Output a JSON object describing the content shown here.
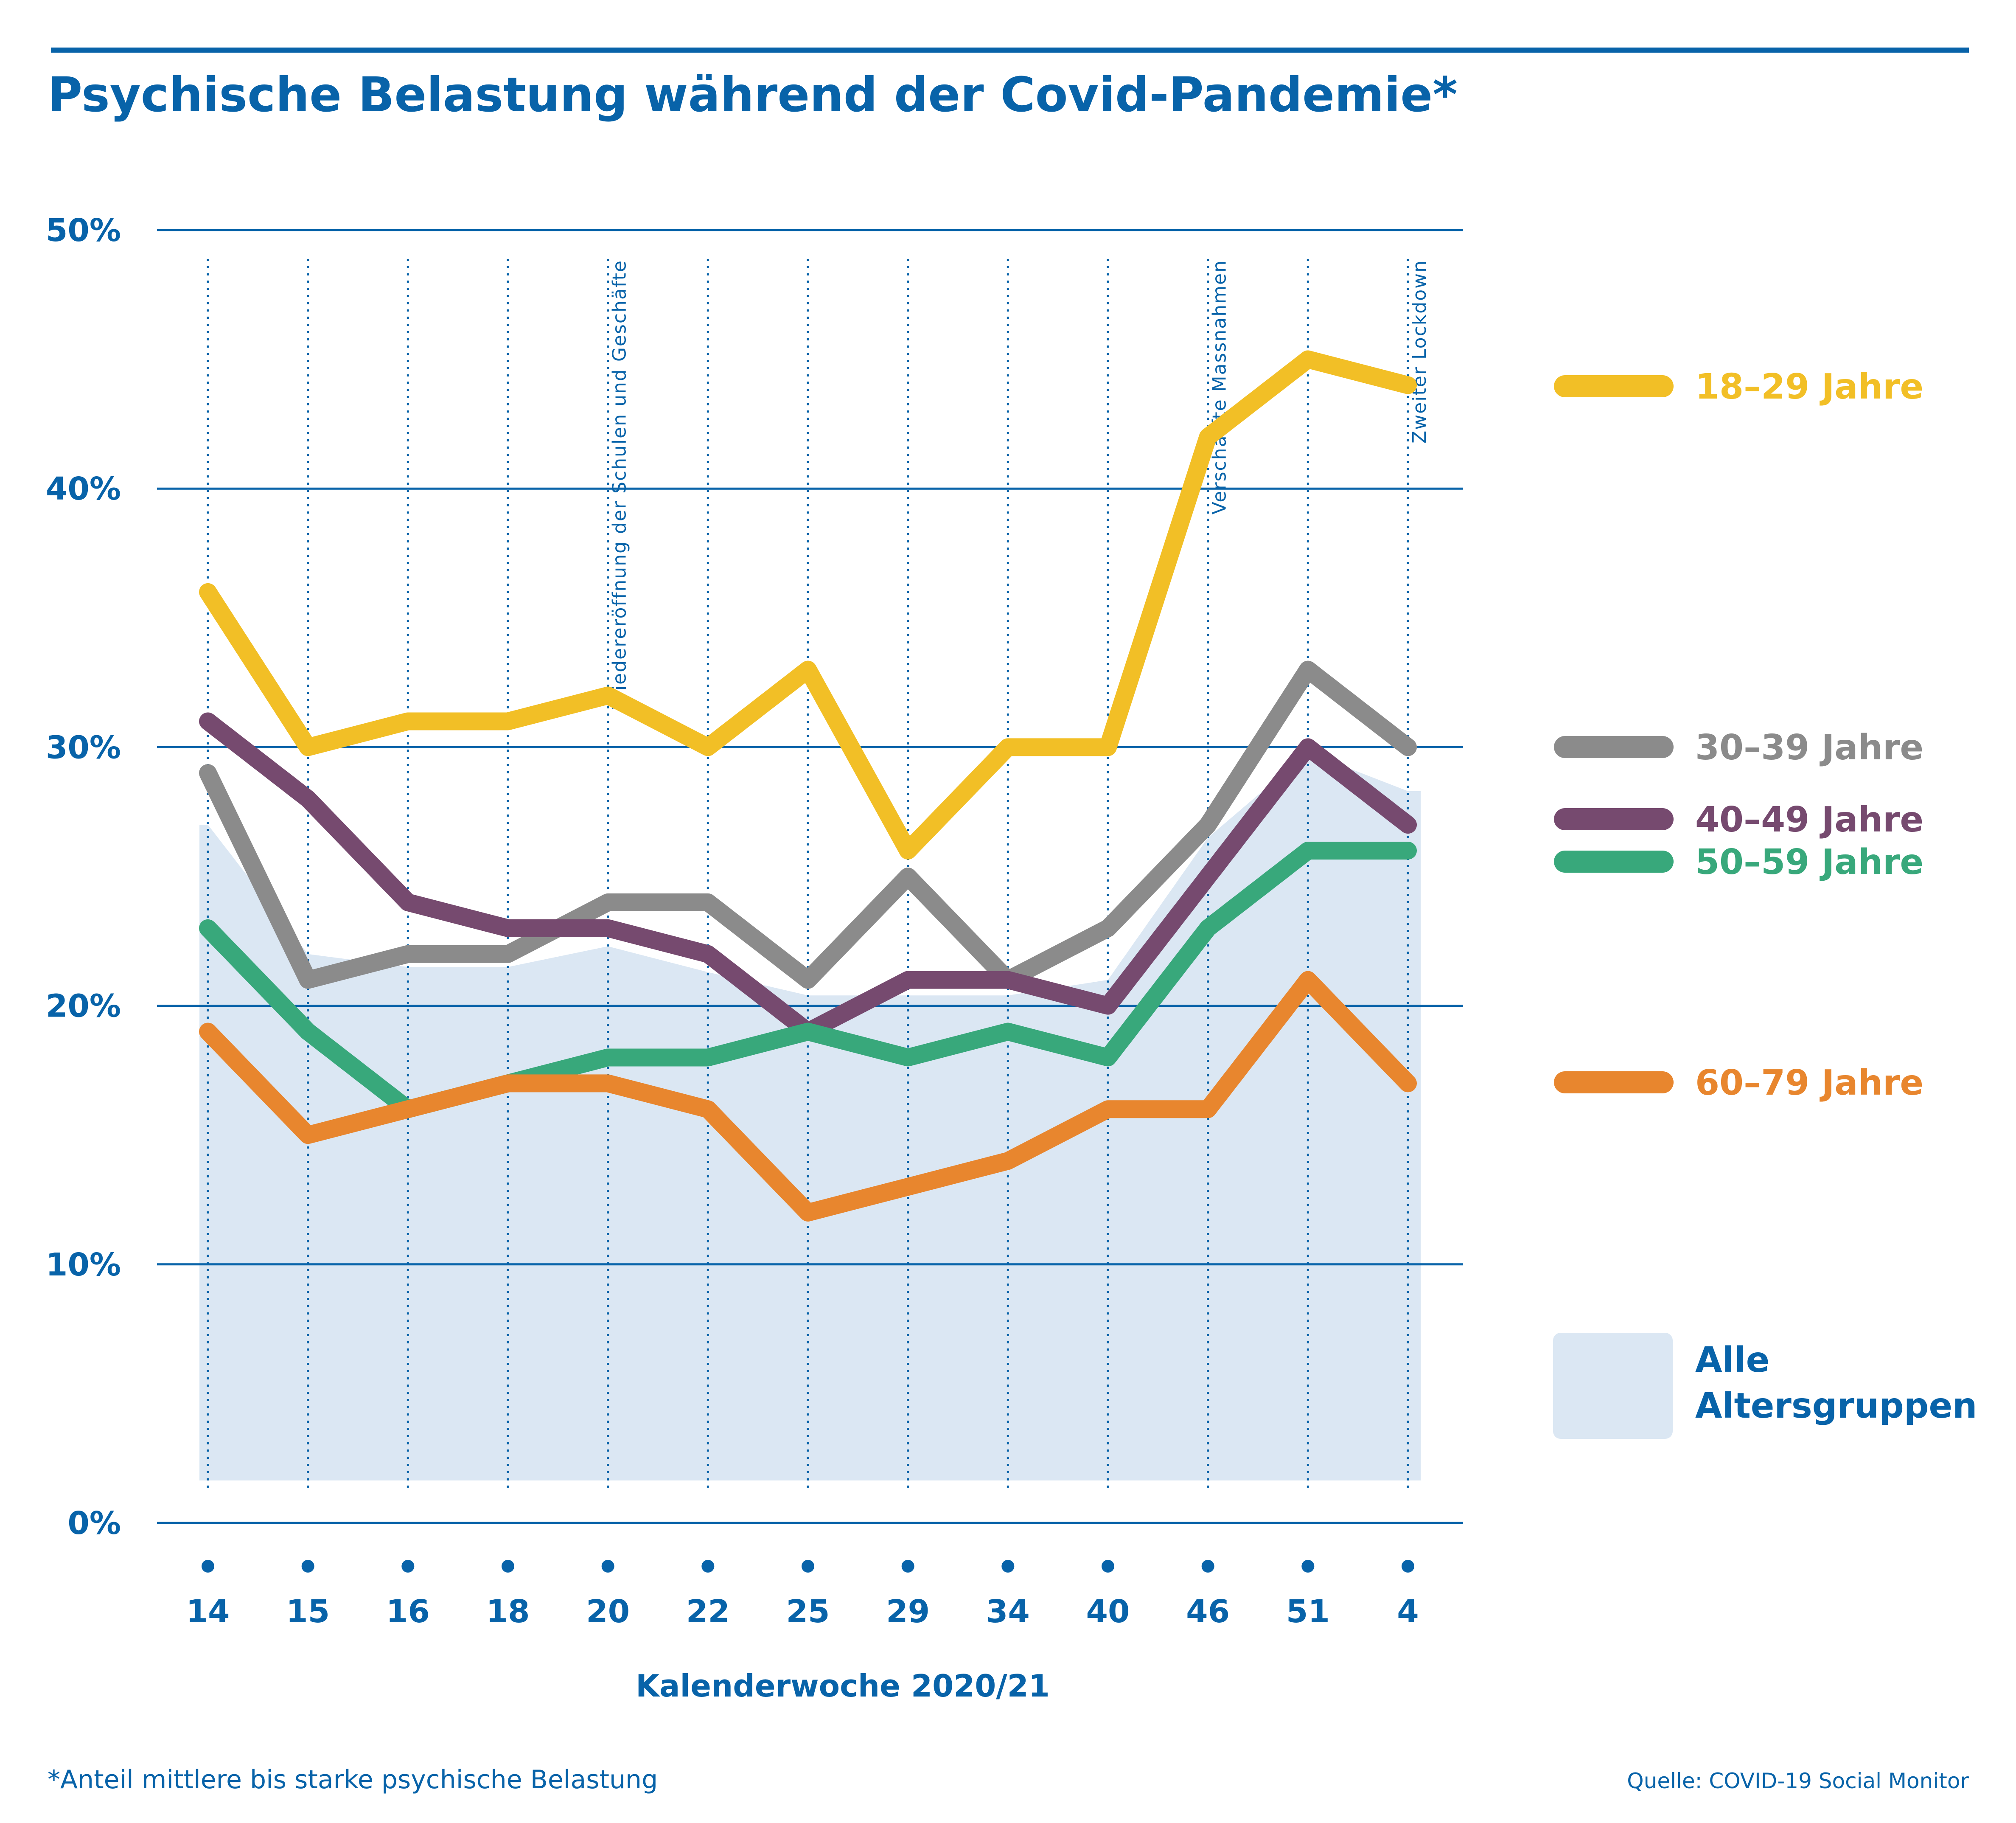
{
  "colors": {
    "brand": "#0863a9",
    "area": "#dbe7f3"
  },
  "chart_data": {
    "type": "line",
    "title": "Psychische Belastung während der Covid-Pandemie*",
    "xlabel": "Kalenderwoche 2020/21",
    "ylabel": "",
    "ylim": [
      0,
      50
    ],
    "yticks": [
      0,
      10,
      20,
      30,
      40,
      50
    ],
    "ytick_labels": [
      "0%",
      "10%",
      "20%",
      "30%",
      "40%",
      "50%"
    ],
    "categories": [
      "14",
      "15",
      "16",
      "18",
      "20",
      "22",
      "25",
      "29",
      "34",
      "40",
      "46",
      "51",
      "4"
    ],
    "grid": "horizontal lines at y ticks; dotted vertical lines at each week",
    "events": [
      {
        "category": "20",
        "label": "Wiedereröffnung der Schulen und Geschäfte"
      },
      {
        "category": "46",
        "label": "Verschärfte Massnahmen"
      },
      {
        "category": "4",
        "label": "Zweiter Lockdown"
      }
    ],
    "area": {
      "name": "Alle Altersgruppen",
      "color": "#dbe7f3",
      "values": [
        27,
        22,
        21.5,
        21.5,
        22.3,
        21.3,
        20.4,
        20.4,
        20.4,
        21,
        26.5,
        29.8,
        28.3
      ]
    },
    "series": [
      {
        "name": "18–29 Jahre",
        "color": "#f2bf26",
        "values": [
          36,
          30,
          31,
          31,
          32,
          30,
          33,
          26,
          30,
          30,
          42,
          45,
          44
        ]
      },
      {
        "name": "30–39 Jahre",
        "color": "#8b8b8b",
        "values": [
          29,
          21,
          22,
          22,
          24,
          24,
          21,
          25,
          21,
          23,
          27,
          33,
          30
        ]
      },
      {
        "name": "40–49 Jahre",
        "color": "#764a6f",
        "values": [
          31,
          28,
          24,
          23,
          23,
          22,
          19,
          21,
          21,
          20,
          25,
          30,
          27
        ]
      },
      {
        "name": "50–59 Jahre",
        "color": "#38a87b",
        "values": [
          23,
          19,
          16,
          17,
          18,
          18,
          19,
          18,
          19,
          18,
          23,
          26,
          26
        ]
      },
      {
        "name": "60–79 Jahre",
        "color": "#e8862e",
        "values": [
          19,
          15,
          16,
          17,
          17,
          16,
          12,
          13,
          14,
          16,
          16,
          21,
          17
        ]
      }
    ],
    "legend_position": "right",
    "note": "*Anteil mittlere bis starke psychische Belastung",
    "source": "Quelle: COVID-19 Social Monitor"
  },
  "legend": {
    "area_line1": "Alle",
    "area_line2": "Altersgruppen"
  }
}
